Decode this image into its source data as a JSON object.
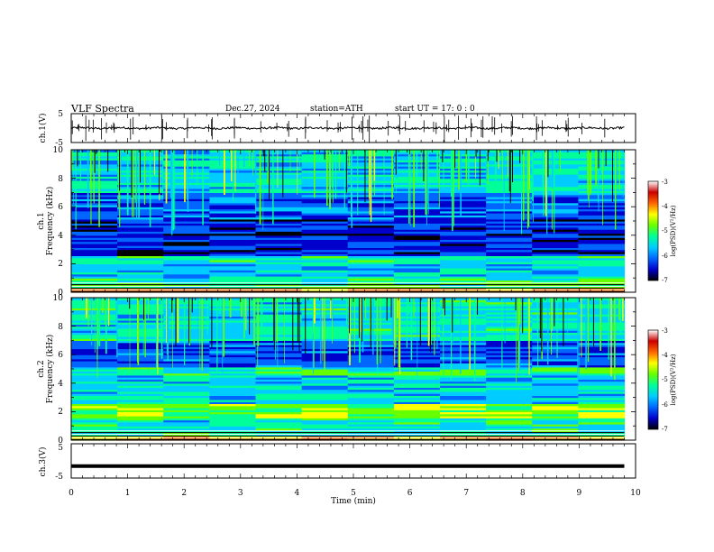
{
  "header": {
    "title": "VLF  Spectra",
    "date": "Dec.27, 2024",
    "station": "station=ATH",
    "start": "start  UT  =    17: 0   : 0"
  },
  "colors": {
    "colormap": [
      "#000000",
      "#0000cc",
      "#0066ff",
      "#00ccff",
      "#00ff99",
      "#66ff00",
      "#ffff00",
      "#ff6600",
      "#cc0000",
      "#ffffff"
    ],
    "trace": "#000000"
  },
  "chart_data": [
    {
      "type": "line",
      "panel": "ch1-waveform",
      "ylabel": "ch.1(V)",
      "ylim": [
        -5,
        5
      ],
      "yticks": [
        "5",
        "-5"
      ],
      "x_range_min": [
        0,
        9.8
      ],
      "typical_amplitude_V": 0.5
    },
    {
      "type": "heatmap",
      "panel": "ch1-spectrogram",
      "ylabel_line1": "ch.1",
      "ylabel_line2": "Frequency (kHz)",
      "ylim_kHz": [
        0,
        10
      ],
      "yticks": [
        "0",
        "2",
        "4",
        "6",
        "8",
        "10"
      ],
      "x_range_min": [
        0,
        9.8
      ],
      "colorbar": {
        "label": "log(PSD)(V²/Hz)",
        "range": [
          -7,
          -3
        ],
        "ticks": [
          "-3",
          "-4",
          "-5",
          "-6",
          "-7"
        ]
      },
      "bands": [
        {
          "from_kHz": 0.0,
          "to_kHz": 0.3,
          "level": -3.2
        },
        {
          "from_kHz": 0.3,
          "to_kHz": 1.0,
          "level": -4.6
        },
        {
          "from_kHz": 1.0,
          "to_kHz": 2.0,
          "level": -5.3
        },
        {
          "from_kHz": 2.0,
          "to_kHz": 2.6,
          "level": -4.9
        },
        {
          "from_kHz": 2.6,
          "to_kHz": 5.2,
          "level": -6.1
        },
        {
          "from_kHz": 5.2,
          "to_kHz": 7.0,
          "level": -5.8
        },
        {
          "from_kHz": 7.0,
          "to_kHz": 10.0,
          "level": -5.1
        }
      ]
    },
    {
      "type": "heatmap",
      "panel": "ch2-spectrogram",
      "ylabel_line1": "ch.2",
      "ylabel_line2": "Frequency (kHz)",
      "ylim_kHz": [
        0,
        10
      ],
      "yticks": [
        "0",
        "2",
        "4",
        "6",
        "8",
        "10"
      ],
      "x_range_min": [
        0,
        9.8
      ],
      "colorbar": {
        "label": "log(PSD)(V²/Hz)",
        "range": [
          -7,
          -3
        ],
        "ticks": [
          "-3",
          "-4",
          "-5",
          "-6",
          "-7"
        ]
      },
      "bands": [
        {
          "from_kHz": 0.0,
          "to_kHz": 0.3,
          "level": -3.3
        },
        {
          "from_kHz": 0.3,
          "to_kHz": 1.6,
          "level": -5.0
        },
        {
          "from_kHz": 1.6,
          "to_kHz": 2.6,
          "level": -4.2
        },
        {
          "from_kHz": 2.6,
          "to_kHz": 4.6,
          "level": -5.2
        },
        {
          "from_kHz": 4.6,
          "to_kHz": 5.2,
          "level": -4.8
        },
        {
          "from_kHz": 5.2,
          "to_kHz": 7.0,
          "level": -5.9
        },
        {
          "from_kHz": 7.0,
          "to_kHz": 10.0,
          "level": -5.0
        }
      ]
    },
    {
      "type": "line",
      "panel": "ch3-waveform",
      "ylabel": "ch.3(V)",
      "ylim": [
        -5,
        5
      ],
      "yticks": [
        "5",
        "-5"
      ],
      "x_range_min": [
        0,
        9.8
      ],
      "level_V": -1.5,
      "xlabel": "Time  (min)",
      "xlim": [
        0,
        10
      ],
      "xticks": [
        "0",
        "1",
        "2",
        "3",
        "4",
        "5",
        "6",
        "7",
        "8",
        "9",
        "10"
      ]
    }
  ]
}
